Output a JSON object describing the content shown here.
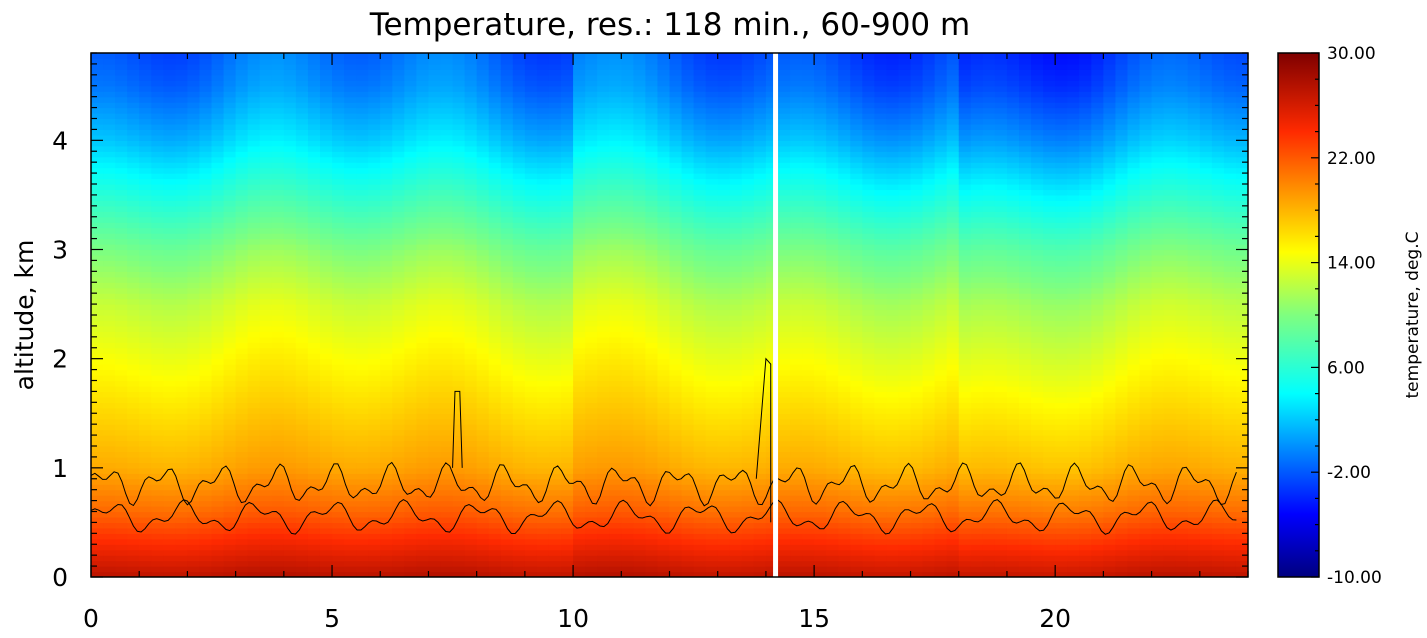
{
  "chart_data": {
    "type": "heatmap",
    "title": "Temperature, res.: 118 min., 60-900 m",
    "xlabel": "",
    "ylabel": "altitude, km",
    "xlim": [
      0,
      24
    ],
    "ylim": [
      0,
      4.8
    ],
    "x_ticks": [
      "0",
      "5",
      "10",
      "15",
      "20"
    ],
    "x_tick_values": [
      0,
      5,
      10,
      15,
      20
    ],
    "y_ticks": [
      "0",
      "1",
      "2",
      "3",
      "4"
    ],
    "y_tick_values": [
      0,
      1,
      2,
      3,
      4
    ],
    "gap_x": 14.2,
    "colorbar": {
      "title": "temperature, deg.C",
      "min": -10,
      "max": 30,
      "ticks": [
        "-10.00",
        "-2.00",
        "6.00",
        "14.00",
        "22.00",
        "30.00"
      ],
      "tick_values": [
        -10,
        -2,
        6,
        14,
        22,
        30
      ],
      "colormap": "rainbow (dark blue to dark red)"
    },
    "profile": {
      "altitude_km": [
        0.0,
        0.3,
        0.6,
        1.0,
        1.5,
        2.0,
        2.5,
        3.0,
        3.5,
        4.0,
        4.5,
        4.8
      ],
      "temperature_degC": [
        27,
        24,
        21,
        18,
        16,
        14,
        12,
        9,
        5,
        1,
        -2,
        -3
      ]
    },
    "contour": {
      "level": "cloud boundaries (black contour)",
      "altitude_range_km": [
        0.4,
        1.0
      ],
      "note_peaks_km": [
        1.7,
        2.0
      ]
    }
  }
}
